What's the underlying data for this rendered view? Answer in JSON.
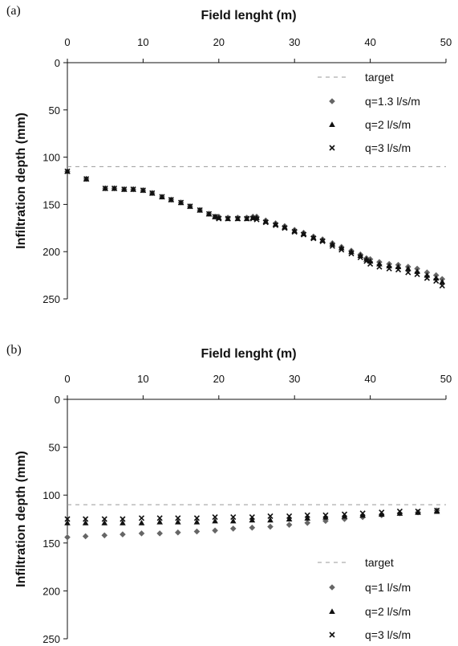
{
  "chart_data": [
    {
      "type": "scatter",
      "panel_label": "(a)",
      "title": "",
      "xlabel": "Field lenght (m)",
      "ylabel": "Infiltration depth (mm)",
      "xlim": [
        0,
        50
      ],
      "ylim": [
        0,
        250
      ],
      "y_inverted": true,
      "x_axis_position": "top",
      "xticks": [
        "0",
        "10",
        "20",
        "30",
        "40",
        "50"
      ],
      "yticks": [
        "0",
        "50",
        "100",
        "150",
        "200",
        "250"
      ],
      "grid": false,
      "legend_position": "top-right",
      "target": {
        "name": "target",
        "y": 110
      },
      "series": [
        {
          "name": "q=1.3 l/s/m",
          "marker": "diamond",
          "color": "#666666",
          "x": [
            0,
            2.5,
            5,
            6.2,
            7.5,
            8.7,
            10,
            11.2,
            12.5,
            13.7,
            15,
            16.2,
            17.5,
            18.7,
            19.5,
            20,
            21.2,
            22.5,
            23.7,
            24.5,
            25,
            26.2,
            27.5,
            28.7,
            30,
            31.2,
            32.5,
            33.7,
            35,
            36.2,
            37.5,
            38.7,
            39.5,
            40,
            41.2,
            42.5,
            43.7,
            45,
            46.2,
            47.5,
            48.7,
            49.5
          ],
          "y": [
            115,
            123,
            133,
            133,
            134,
            134,
            135,
            138,
            142,
            145,
            148,
            152,
            156,
            160,
            163,
            163,
            164,
            164,
            164,
            163,
            163,
            167,
            170,
            173,
            177,
            180,
            184,
            187,
            191,
            195,
            199,
            203,
            207,
            208,
            211,
            213,
            214,
            216,
            218,
            222,
            225,
            229
          ]
        },
        {
          "name": "q=2 l/s/m",
          "marker": "triangle",
          "color": "#111111",
          "x": [
            0,
            2.5,
            5,
            6.2,
            7.5,
            8.7,
            10,
            11.2,
            12.5,
            13.7,
            15,
            16.2,
            17.5,
            18.7,
            19.5,
            20,
            21.2,
            22.5,
            23.7,
            24.5,
            25,
            26.2,
            27.5,
            28.7,
            30,
            31.2,
            32.5,
            33.7,
            35,
            36.2,
            37.5,
            38.7,
            39.5,
            40,
            41.2,
            42.5,
            43.7,
            45,
            46.2,
            47.5,
            48.7,
            49.5
          ],
          "y": [
            115,
            123,
            133,
            133,
            134,
            134,
            135,
            138,
            142,
            145,
            148,
            152,
            156,
            160,
            163,
            164,
            165,
            165,
            165,
            164,
            164,
            168,
            171,
            174,
            178,
            181,
            185,
            188,
            192,
            196,
            200,
            204,
            208,
            210,
            213,
            215,
            216,
            218,
            221,
            225,
            228,
            232
          ]
        },
        {
          "name": "q=3 l/s/m",
          "marker": "cross",
          "color": "#111111",
          "x": [
            0,
            2.5,
            5,
            6.2,
            7.5,
            8.7,
            10,
            11.2,
            12.5,
            13.7,
            15,
            16.2,
            17.5,
            18.7,
            19.5,
            20,
            21.2,
            22.5,
            23.7,
            24.5,
            25,
            26.2,
            27.5,
            28.7,
            30,
            31.2,
            32.5,
            33.7,
            35,
            36.2,
            37.5,
            38.7,
            39.5,
            40,
            41.2,
            42.5,
            43.7,
            45,
            46.2,
            47.5,
            48.7,
            49.5
          ],
          "y": [
            115,
            123,
            133,
            133,
            134,
            134,
            135,
            138,
            142,
            145,
            148,
            152,
            156,
            160,
            163,
            165,
            165,
            165,
            165,
            165,
            166,
            169,
            172,
            175,
            179,
            182,
            186,
            189,
            194,
            198,
            202,
            206,
            210,
            213,
            216,
            218,
            219,
            222,
            224,
            228,
            231,
            236
          ]
        }
      ]
    },
    {
      "type": "scatter",
      "panel_label": "(b)",
      "title": "",
      "xlabel": "Field lenght (m)",
      "ylabel": "Infiltration depth (mm)",
      "xlim": [
        0,
        50
      ],
      "ylim": [
        0,
        250
      ],
      "y_inverted": true,
      "x_axis_position": "top",
      "xticks": [
        "0",
        "10",
        "20",
        "30",
        "40",
        "50"
      ],
      "yticks": [
        "0",
        "50",
        "100",
        "150",
        "200",
        "250"
      ],
      "grid": false,
      "legend_position": "bottom-right",
      "target": {
        "name": "target",
        "y": 110
      },
      "series": [
        {
          "name": "q=1 l/s/m",
          "marker": "diamond",
          "color": "#666666",
          "x": [
            0,
            2.4,
            4.9,
            7.3,
            9.8,
            12.2,
            14.6,
            17.1,
            19.5,
            21.9,
            24.4,
            26.8,
            29.3,
            31.7,
            34.1,
            36.6,
            39,
            41.5,
            43.9,
            46.3,
            48.8
          ],
          "y": [
            144,
            143,
            142,
            141,
            140,
            140,
            139,
            138,
            137,
            135,
            134,
            133,
            131,
            129,
            127,
            125,
            123,
            121,
            119,
            118,
            116
          ]
        },
        {
          "name": "q=2 l/s/m",
          "marker": "triangle",
          "color": "#111111",
          "x": [
            0,
            2.4,
            4.9,
            7.3,
            9.8,
            12.2,
            14.6,
            17.1,
            19.5,
            21.9,
            24.4,
            26.8,
            29.3,
            31.7,
            34.1,
            36.6,
            39,
            41.5,
            43.9,
            46.3,
            48.8
          ],
          "y": [
            129,
            129,
            129,
            129,
            129,
            128,
            128,
            128,
            127,
            127,
            126,
            126,
            125,
            124,
            123,
            122,
            121,
            120,
            119,
            118,
            117
          ]
        },
        {
          "name": "q=3 l/s/m",
          "marker": "cross",
          "color": "#111111",
          "x": [
            0,
            2.4,
            4.9,
            7.3,
            9.8,
            12.2,
            14.6,
            17.1,
            19.5,
            21.9,
            24.4,
            26.8,
            29.3,
            31.7,
            34.1,
            36.6,
            39,
            41.5,
            43.9,
            46.3,
            48.8
          ],
          "y": [
            125,
            125,
            125,
            125,
            124,
            124,
            124,
            124,
            123,
            123,
            123,
            122,
            122,
            121,
            121,
            120,
            119,
            118,
            117,
            117,
            116
          ]
        }
      ]
    }
  ]
}
